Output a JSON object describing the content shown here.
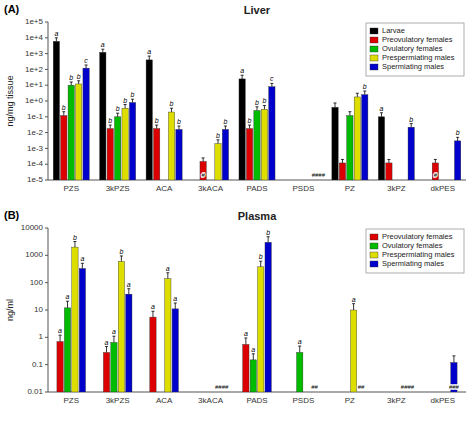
{
  "chart_data": [
    {
      "type": "bar",
      "title": "Liver",
      "y_label": "ng/mg tissue",
      "annotations": [
        "(A)"
      ],
      "categories": [
        "PZS",
        "3kPZS",
        "ACA",
        "3kACA",
        "PADS",
        "PSDS",
        "PZ",
        "3kPZ",
        "dkPES"
      ],
      "series": [
        {
          "name": "Larvae",
          "color": "#000000",
          "values": [
            6000,
            1200,
            400,
            null,
            25,
            null,
            0.4,
            0.1,
            null
          ],
          "errors_upper": [
            4000,
            700,
            300,
            null,
            18,
            null,
            0.35,
            0.08,
            null
          ],
          "letters": [
            "a",
            "a",
            "a",
            null,
            "a",
            null,
            null,
            "a",
            null
          ]
        },
        {
          "name": "Preovulatory females",
          "color": "#dd0000",
          "values": [
            0.12,
            0.018,
            0.018,
            0.00015,
            0.018,
            null,
            0.00012,
            0.00012,
            0.00012
          ],
          "errors_upper": [
            0.09,
            0.012,
            0.012,
            0.0001,
            0.012,
            null,
            8e-05,
            8e-05,
            8e-05
          ],
          "letters": [
            "b",
            "b",
            "b",
            "#",
            "b",
            null,
            null,
            null,
            "#"
          ]
        },
        {
          "name": "Ovulatory females",
          "color": "#00bb00",
          "values": [
            10,
            0.1,
            null,
            null,
            0.25,
            null,
            0.12,
            null,
            null
          ],
          "errors_upper": [
            6,
            0.07,
            null,
            null,
            0.18,
            null,
            0.09,
            null,
            null
          ],
          "letters": [
            "b",
            "b",
            null,
            null,
            "b",
            null,
            null,
            null,
            null
          ]
        },
        {
          "name": "Prespermiating males",
          "color": "#dddd00",
          "values": [
            12,
            0.35,
            0.2,
            0.002,
            0.3,
            null,
            1.8,
            null,
            null
          ],
          "errors_upper": [
            7,
            0.25,
            0.15,
            0.0015,
            0.22,
            null,
            1.3,
            null,
            null
          ],
          "letters": [
            "b",
            "b",
            "b",
            "b",
            "b",
            null,
            null,
            null,
            null
          ]
        },
        {
          "name": "Spermiating males",
          "color": "#0000cc",
          "values": [
            120,
            0.8,
            0.016,
            0.016,
            8,
            null,
            2.5,
            0.022,
            0.003
          ],
          "errors_upper": [
            70,
            0.5,
            0.01,
            0.01,
            5,
            null,
            1.8,
            0.015,
            0.002
          ],
          "letters": [
            "c",
            "b",
            "b",
            "b",
            "c",
            "####",
            "b",
            "b",
            "b"
          ]
        }
      ],
      "log": "y",
      "ylim": [
        1e-05,
        100000.0
      ],
      "yticks": [
        {
          "value": 1e-05,
          "label": "1e-5"
        },
        {
          "value": 0.0001,
          "label": "1e-4"
        },
        {
          "value": 0.001,
          "label": "1e-3"
        },
        {
          "value": 0.01,
          "label": "1e-2"
        },
        {
          "value": 0.1,
          "label": "1e-1"
        },
        {
          "value": 1,
          "label": "1e+0"
        },
        {
          "value": 10,
          "label": "1e+1"
        },
        {
          "value": 100,
          "label": "1e+2"
        },
        {
          "value": 1000,
          "label": "1e+3"
        },
        {
          "value": 10000,
          "label": "1e+4"
        },
        {
          "value": 100000,
          "label": "1e+5"
        }
      ],
      "grid": false,
      "legend": "upper right"
    },
    {
      "type": "bar",
      "title": "Plasma",
      "y_label": "ng/ml",
      "annotations": [
        "(B)"
      ],
      "categories": [
        "PZS",
        "3kPZS",
        "ACA",
        "3kACA",
        "PADS",
        "PSDS",
        "PZ",
        "3kPZ",
        "dkPES"
      ],
      "series": [
        {
          "name": "Preovulatory females",
          "color": "#dd0000",
          "values": [
            0.7,
            0.28,
            5.5,
            null,
            0.55,
            null,
            null,
            null,
            null
          ],
          "errors_upper": [
            0.5,
            0.18,
            3.5,
            null,
            0.4,
            null,
            null,
            null,
            null
          ],
          "letters": [
            "a",
            "a",
            "a",
            null,
            "a",
            null,
            null,
            null,
            null
          ]
        },
        {
          "name": "Ovulatory females",
          "color": "#00bb00",
          "values": [
            12,
            0.65,
            null,
            null,
            0.15,
            0.28,
            null,
            null,
            null
          ],
          "errors_upper": [
            9,
            0.45,
            null,
            null,
            0.1,
            0.2,
            null,
            null,
            null
          ],
          "letters": [
            "a",
            "a",
            null,
            null,
            "a",
            "a",
            null,
            null,
            null
          ]
        },
        {
          "name": "Prespermiating males",
          "color": "#dddd00",
          "values": [
            2000,
            600,
            140,
            null,
            380,
            null,
            10,
            null,
            null
          ],
          "errors_upper": [
            1200,
            350,
            90,
            null,
            230,
            null,
            7,
            null,
            null
          ],
          "letters": [
            "b",
            "b",
            "a",
            null,
            "b",
            null,
            "a",
            null,
            null
          ]
        },
        {
          "name": "Spermiating males",
          "color": "#0000cc",
          "values": [
            330,
            38,
            11,
            null,
            3000,
            null,
            null,
            null,
            0.12
          ],
          "errors_upper": [
            180,
            22,
            7,
            null,
            1800,
            null,
            null,
            null,
            0.09
          ],
          "letters": [
            "a",
            "a",
            "a",
            "####",
            "b",
            "##",
            "##",
            "####",
            "###"
          ]
        }
      ],
      "log": "y",
      "ylim": [
        0.01,
        10000
      ],
      "yticks": [
        0.01,
        0.1,
        1,
        10,
        100,
        1000,
        10000
      ],
      "grid": false,
      "legend": "upper right"
    }
  ]
}
